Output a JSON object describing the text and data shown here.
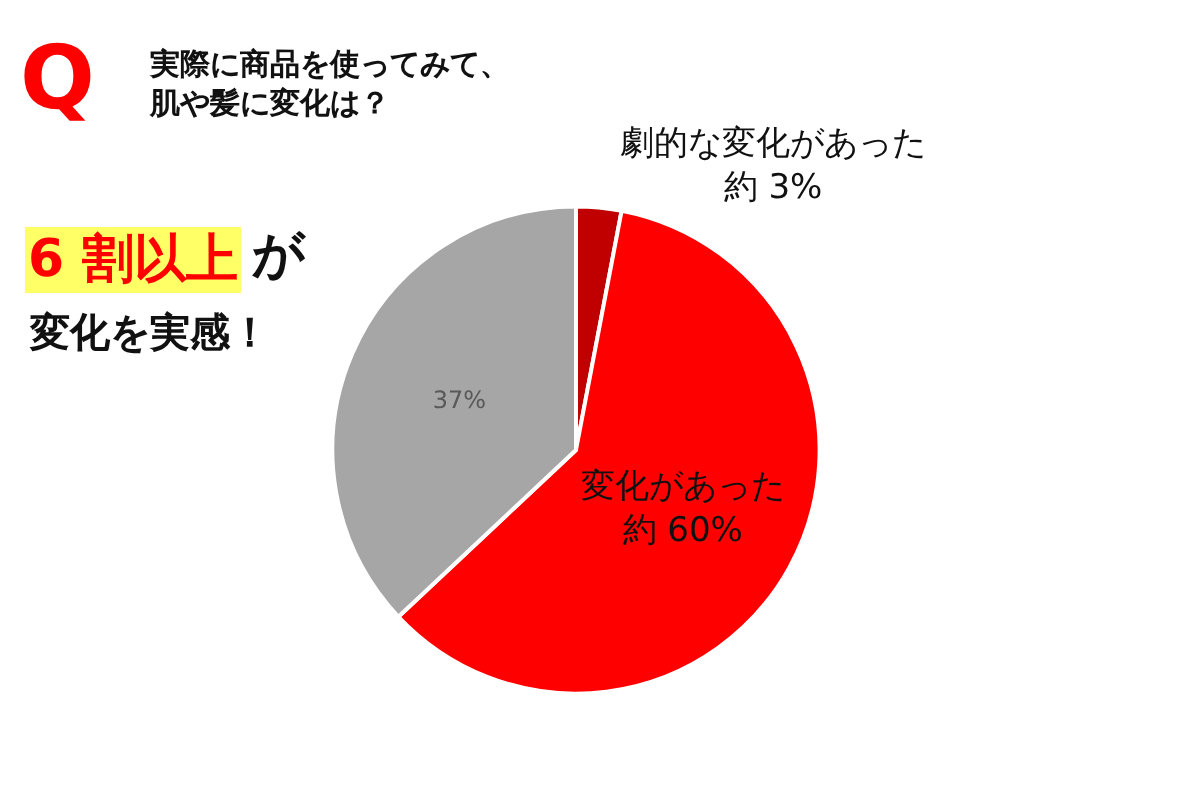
{
  "chart_data": {
    "type": "pie",
    "title": "実際に商品を使ってみて、肌や髪に変化は？",
    "annotations": [
      "Q",
      "6 割以上",
      "が",
      "変化を実感！"
    ],
    "categories": [
      "劇的な変化があった",
      "変化があった",
      null
    ],
    "values": [
      3,
      60,
      37
    ],
    "value_labels": [
      "約 3%",
      "約 60%",
      "37%"
    ],
    "colors": [
      "#c00000",
      "#ff0000",
      "#a6a6a6"
    ],
    "legend": false
  }
}
